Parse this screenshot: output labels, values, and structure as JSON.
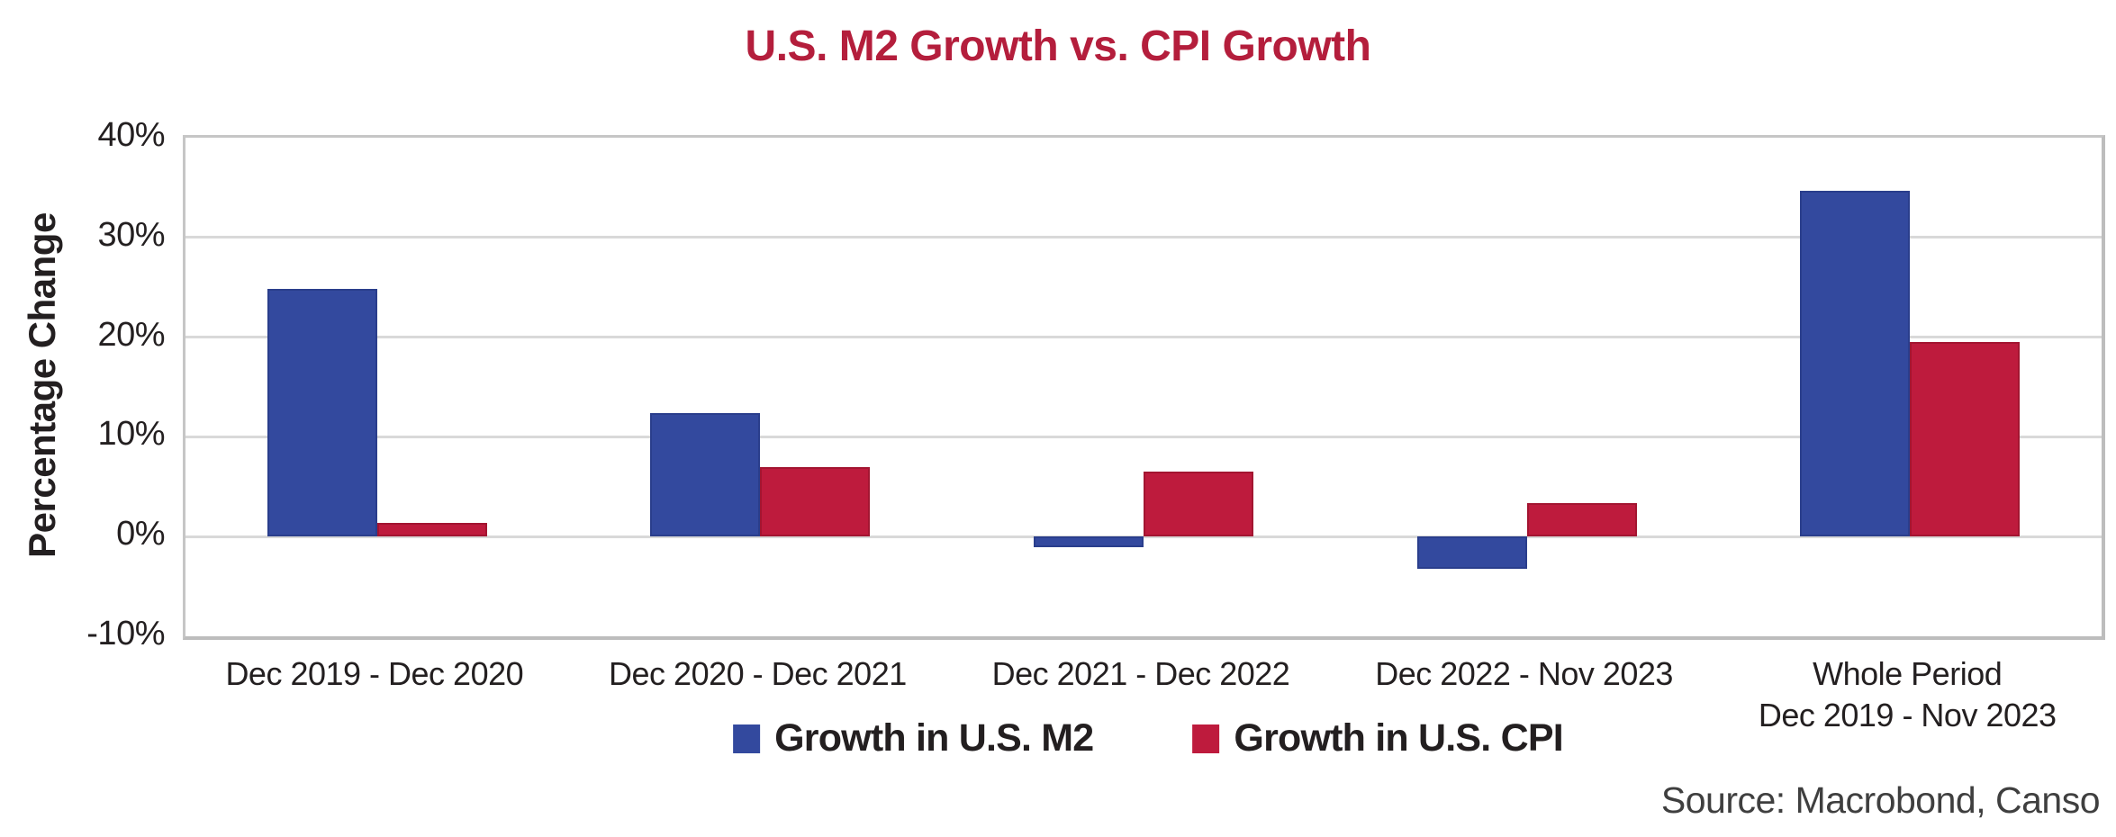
{
  "title": "U.S. M2 Growth vs. CPI Growth",
  "source": "Source: Macrobond, Canso",
  "colors": {
    "title_red": "#B41E3C",
    "m2_blue": "#33499E",
    "m2_blue_border": "#2A3E8C",
    "cpi_red": "#BE1B3D",
    "cpi_red_border": "#A31531",
    "gridline_gray": "#D9D9D9",
    "axis_border_gray": "#BDBDBD",
    "label_text": "#231F20",
    "source_text": "#3F3F3F"
  },
  "chart_data": {
    "type": "bar",
    "title": "U.S. M2 Growth vs. CPI Growth",
    "ylabel": "Percentage Change",
    "xlabel": "",
    "ylim": [
      -10,
      40
    ],
    "yticks": [
      40,
      30,
      20,
      10,
      0,
      -10
    ],
    "ytick_labels": [
      "40%",
      "30%",
      "20%",
      "10%",
      "0%",
      "-10%"
    ],
    "grid": true,
    "legend_position": "bottom",
    "categories": [
      "Dec 2019 - Dec 2020",
      "Dec 2020 - Dec 2021",
      "Dec 2021 - Dec 2022",
      "Dec 2022 - Nov 2023",
      "Whole Period\nDec 2019 - Nov 2023"
    ],
    "series": [
      {
        "name": "Growth in U.S. M2",
        "color": "#33499E",
        "border_color": "#2A3E8C",
        "values": [
          24.8,
          12.4,
          -1.1,
          -3.2,
          34.7
        ]
      },
      {
        "name": "Growth in U.S. CPI",
        "color": "#BE1B3D",
        "border_color": "#A31531",
        "values": [
          1.4,
          7.0,
          6.5,
          3.4,
          19.5
        ]
      }
    ]
  }
}
